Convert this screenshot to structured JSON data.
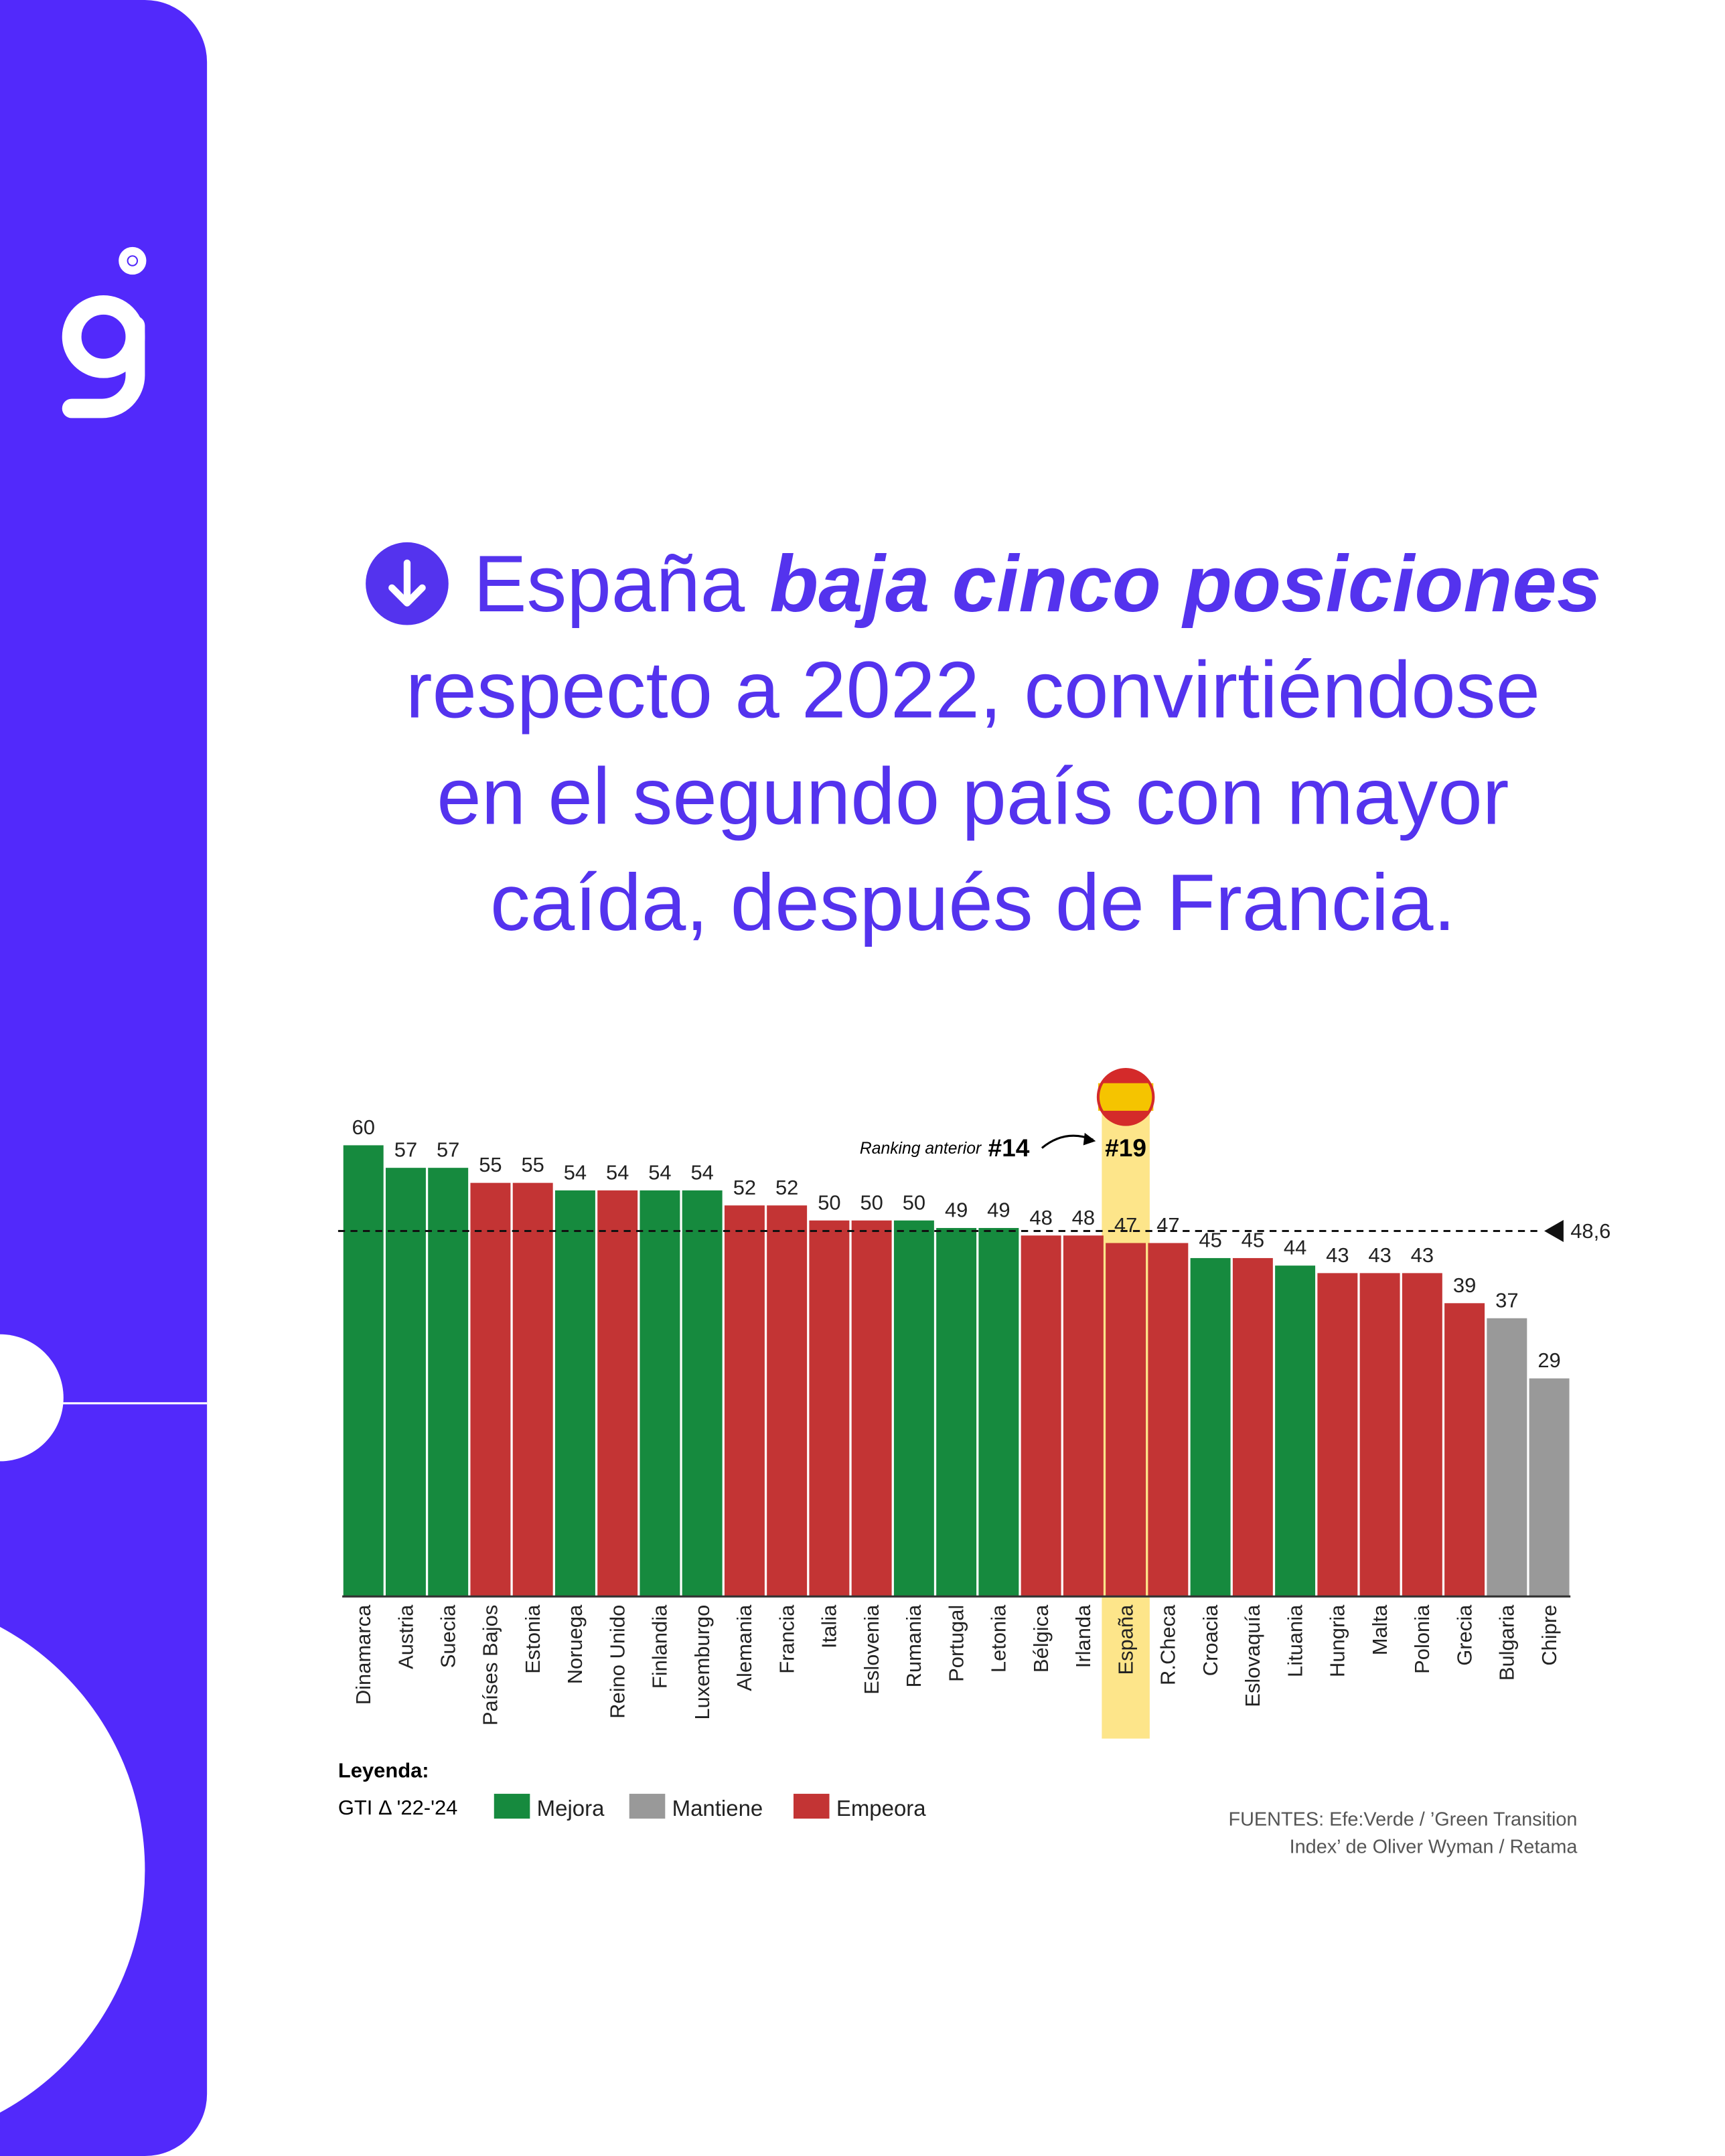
{
  "headline": {
    "lead": "España",
    "emphasis": "baja cinco posiciones",
    "lines": [
      "respecto a 2022, convirtiéndose",
      "en el segundo país con mayor",
      "caída, después de Francia."
    ]
  },
  "chart_data": {
    "type": "bar",
    "categories": [
      "Dinamarca",
      "Austria",
      "Suecia",
      "Países Bajos",
      "Estonia",
      "Noruega",
      "Reino Unido",
      "Finlandia",
      "Luxemburgo",
      "Alemania",
      "Francia",
      "Italia",
      "Eslovenia",
      "Rumania",
      "Portugal",
      "Letonia",
      "Bélgica",
      "Irlanda",
      "España",
      "R.Checa",
      "Croacia",
      "Eslovaquía",
      "Lituania",
      "Hungria",
      "Malta",
      "Polonia",
      "Grecia",
      "Bulgaria",
      "Chipre"
    ],
    "values": [
      60,
      57,
      57,
      55,
      55,
      54,
      54,
      54,
      54,
      52,
      52,
      50,
      50,
      50,
      49,
      49,
      48,
      48,
      47,
      47,
      45,
      45,
      44,
      43,
      43,
      43,
      39,
      37,
      29
    ],
    "colors": [
      "#168a3e",
      "#168a3e",
      "#168a3e",
      "#c33434",
      "#c33434",
      "#168a3e",
      "#c33434",
      "#168a3e",
      "#168a3e",
      "#c33434",
      "#c33434",
      "#c33434",
      "#c33434",
      "#168a3e",
      "#168a3e",
      "#168a3e",
      "#c33434",
      "#c33434",
      "#c33434",
      "#c33434",
      "#168a3e",
      "#c33434",
      "#168a3e",
      "#c33434",
      "#c33434",
      "#c33434",
      "#c33434",
      "#999999",
      "#999999"
    ],
    "ylim": [
      0,
      60
    ],
    "reference_line": {
      "value": 48.6,
      "label": "48,6"
    },
    "highlight": {
      "category": "España",
      "rank": "#19",
      "previous_label": "Ranking anterior",
      "previous_rank": "#14"
    },
    "legend_title": "Leyenda:",
    "legend_subtitle": "GTI Δ '22-'24",
    "legend": [
      {
        "name": "Mejora",
        "color": "#168a3e"
      },
      {
        "name": "Mantiene",
        "color": "#999999"
      },
      {
        "name": "Empeora",
        "color": "#c33434"
      }
    ]
  },
  "sources": [
    "FUENTES: Efe:Verde  /  ’Green Transition",
    "Index’ de Oliver Wyman  /  Retama"
  ]
}
